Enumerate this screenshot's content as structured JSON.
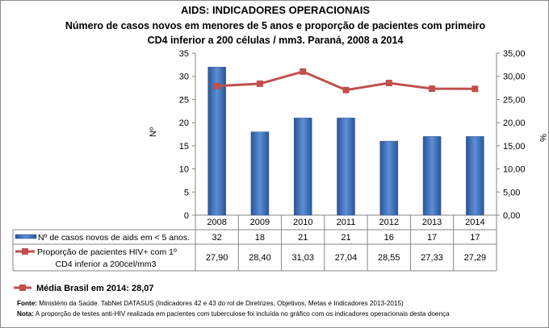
{
  "chart_data": {
    "type": "bar+line",
    "title": "AIDS: INDICADORES OPERACIONAIS",
    "subtitle_line1": "Número de casos novos em menores de 5 anos e proporção de pacientes com primeiro",
    "subtitle_line2": "CD4 inferior a 200 células / mm3. Paraná, 2008 a 2014",
    "categories": [
      "2008",
      "2009",
      "2010",
      "2011",
      "2012",
      "2013",
      "2014"
    ],
    "ylabel_left": "Nº",
    "ylabel_right": "%",
    "ylim_left": [
      0,
      35
    ],
    "ylim_right": [
      0,
      35
    ],
    "yticks_left": [
      "0",
      "5",
      "10",
      "15",
      "20",
      "25",
      "30",
      "35"
    ],
    "yticks_right": [
      "0,00",
      "5,00",
      "10,00",
      "15,00",
      "20,00",
      "25,00",
      "30,00",
      "35,00"
    ],
    "grid": false,
    "series": [
      {
        "name": "Nº de casos novos de aids em < 5 anos.",
        "type": "bar",
        "axis": "left",
        "color": "#3f6fb5",
        "values": [
          32,
          18,
          21,
          21,
          16,
          17,
          17
        ],
        "labels": [
          "32",
          "18",
          "21",
          "21",
          "16",
          "17",
          "17"
        ]
      },
      {
        "name_line1": "Proporção de pacientes HIV+ com 1º",
        "name_line2": "CD4 inferior a 200cel/mm3",
        "type": "line",
        "axis": "right",
        "color": "#c0504d",
        "values": [
          27.9,
          28.4,
          31.03,
          27.04,
          28.55,
          27.33,
          27.29
        ],
        "labels": [
          "27,90",
          "28,40",
          "31,03",
          "27,04",
          "28,55",
          "27,33",
          "27,29"
        ]
      }
    ],
    "data_table": true
  },
  "annotation": {
    "media_brasil": "Média Brasil em 2014: 28,07"
  },
  "footer": {
    "fonte_label": "Fonte:",
    "fonte_text": " Ministério da Saúde. TabNet DATASUS (Indicadores 42 e 43 do rol de Diretrizes, Objetivos, Metas e Indicadores 2013-2015)",
    "nota_label": "Nota:",
    "nota_text": " A proporção de testes anti-HIV realizada em pacientes com tuberculose foi incluída no gráfico com os indicadores operacionais desta doença"
  }
}
